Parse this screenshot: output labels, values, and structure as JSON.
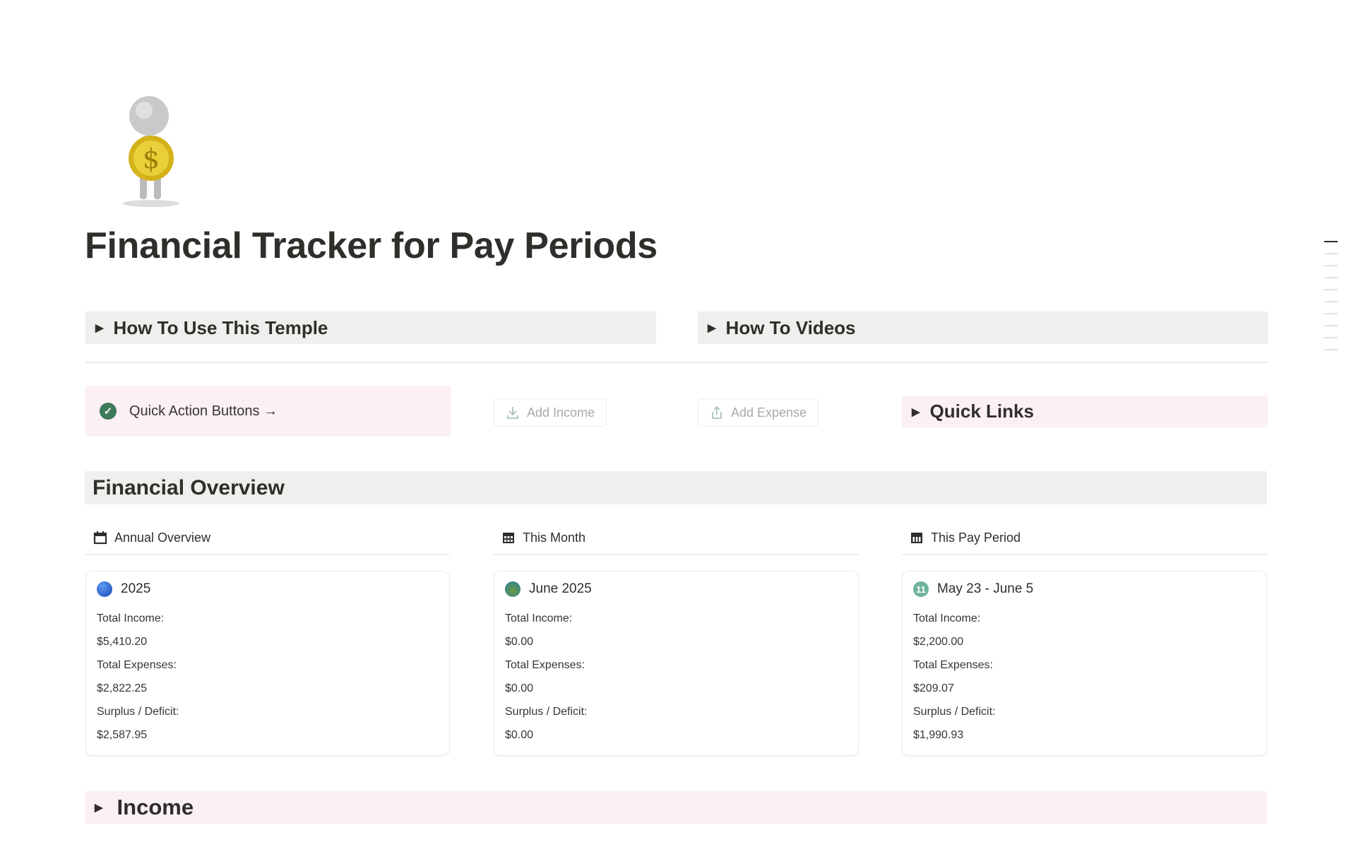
{
  "page": {
    "title": "Financial Tracker for Pay Periods",
    "icon": "person-holding-gold-dollar-coin"
  },
  "toggles": {
    "how_to_use": "How To Use This Temple",
    "how_to_videos": "How To Videos",
    "quick_links": "Quick Links",
    "income": "Income"
  },
  "quick_actions": {
    "label": "Quick Action Buttons →",
    "add_income": "Add Income",
    "add_expense": "Add Expense"
  },
  "overview": {
    "heading": "Financial Overview",
    "columns": [
      {
        "header": "Annual Overview",
        "header_icon": "calendar-icon",
        "card_icon": "blue-circle",
        "card_title": "2025",
        "income_label": "Total Income:",
        "income": "$5,410.20",
        "expenses_label": "Total Expenses:",
        "expenses": "$2,822.25",
        "surplus_label": "Surplus / Deficit:",
        "surplus": "$2,587.95"
      },
      {
        "header": "This Month",
        "header_icon": "calendar-grid-icon",
        "card_icon": "globe",
        "card_title": "June 2025",
        "income_label": "Total Income:",
        "income": "$0.00",
        "expenses_label": "Total Expenses:",
        "expenses": "$0.00",
        "surplus_label": "Surplus / Deficit:",
        "surplus": "$0.00"
      },
      {
        "header": "This Pay Period",
        "header_icon": "calendar-week-icon",
        "card_icon": "number-11-badge",
        "card_title": "May 23 - June 5",
        "income_label": "Total Income:",
        "income": "$2,200.00",
        "expenses_label": "Total Expenses:",
        "expenses": "$209.07",
        "surplus_label": "Surplus / Deficit:",
        "surplus": "$1,990.93"
      }
    ]
  },
  "colors": {
    "green_block": "#edf0ec",
    "pink_block": "#fbf0f4",
    "check": "#3d7a58"
  }
}
